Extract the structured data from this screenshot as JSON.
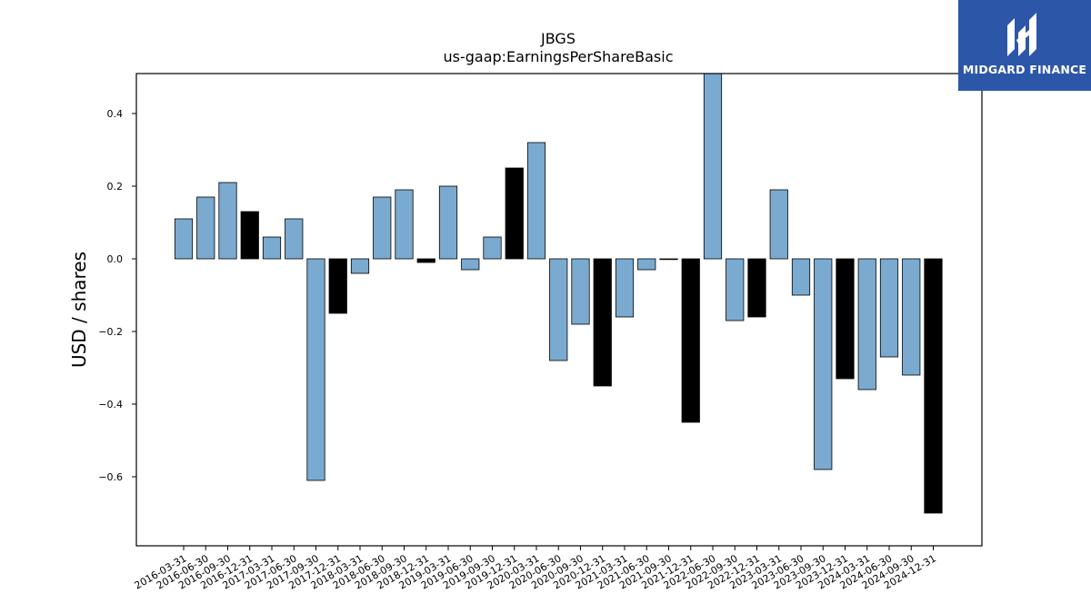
{
  "chart_data": {
    "type": "bar",
    "title": "JBGS",
    "subtitle": "us-gaap:EarningsPerShareBasic",
    "xlabel": "",
    "ylabel": "USD / shares",
    "ylim": [
      -0.79,
      0.51
    ],
    "yticks": [
      -0.6,
      -0.4,
      -0.2,
      0.0,
      0.2,
      0.4
    ],
    "ytick_labels": [
      "−0.6",
      "−0.4",
      "−0.2",
      "0.0",
      "0.2",
      "0.4"
    ],
    "grid": false,
    "colors": {
      "quarter": "#7aaad0",
      "year_end": "#000000",
      "edge": "#000000"
    },
    "categories": [
      "2016-03-31",
      "2016-06-30",
      "2016-09-30",
      "2016-12-31",
      "2017-03-31",
      "2017-06-30",
      "2017-09-30",
      "2017-12-31",
      "2018-03-31",
      "2018-06-30",
      "2018-09-30",
      "2018-12-31",
      "2019-03-31",
      "2019-06-30",
      "2019-09-30",
      "2019-12-31",
      "2020-03-31",
      "2020-06-30",
      "2020-09-30",
      "2020-12-31",
      "2021-03-31",
      "2021-06-30",
      "2021-09-30",
      "2021-12-31",
      "2022-06-30",
      "2022-09-30",
      "2022-12-31",
      "2023-03-31",
      "2023-06-30",
      "2023-09-30",
      "2023-12-31",
      "2024-03-31",
      "2024-06-30",
      "2024-09-30",
      "2024-12-31"
    ],
    "values": [
      0.11,
      0.17,
      0.21,
      0.13,
      0.06,
      0.11,
      -0.61,
      -0.15,
      -0.04,
      0.17,
      0.19,
      -0.01,
      0.2,
      -0.03,
      0.06,
      0.25,
      0.32,
      -0.28,
      -0.18,
      -0.35,
      -0.16,
      -0.03,
      0.0,
      -0.45,
      0.52,
      -0.17,
      -0.16,
      0.19,
      -0.1,
      -0.58,
      -0.33,
      -0.36,
      -0.27,
      -0.32,
      -0.7
    ],
    "year_end": [
      false,
      false,
      false,
      true,
      false,
      false,
      false,
      true,
      false,
      false,
      false,
      true,
      false,
      false,
      false,
      true,
      false,
      false,
      false,
      true,
      false,
      false,
      false,
      true,
      false,
      false,
      true,
      false,
      false,
      false,
      true,
      false,
      false,
      false,
      true
    ]
  },
  "logo": {
    "text": "MIDGARD FINANCE",
    "background": "#2c57a8"
  }
}
